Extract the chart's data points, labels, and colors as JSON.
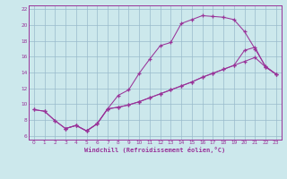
{
  "xlabel": "Windchill (Refroidissement éolien,°C)",
  "bg_color": "#cce8ec",
  "line_color": "#993399",
  "grid_color": "#99bbcc",
  "spine_color": "#993399",
  "xlim": [
    -0.5,
    23.5
  ],
  "ylim": [
    5.5,
    22.5
  ],
  "xticks": [
    0,
    1,
    2,
    3,
    4,
    5,
    6,
    7,
    8,
    9,
    10,
    11,
    12,
    13,
    14,
    15,
    16,
    17,
    18,
    19,
    20,
    21,
    22,
    23
  ],
  "yticks": [
    6,
    8,
    10,
    12,
    14,
    16,
    18,
    20,
    22
  ],
  "curve1_x": [
    0,
    1,
    2,
    3,
    4,
    5,
    6,
    7,
    8,
    9,
    10,
    11,
    12,
    13,
    14,
    15,
    16,
    17,
    18,
    19,
    20,
    21,
    22,
    23
  ],
  "curve1_y": [
    9.3,
    9.1,
    7.9,
    6.9,
    7.3,
    6.6,
    7.5,
    9.4,
    11.1,
    11.8,
    13.9,
    15.7,
    17.4,
    17.8,
    20.2,
    20.7,
    21.2,
    21.1,
    21.0,
    20.7,
    19.2,
    17.0,
    14.8,
    13.8
  ],
  "curve2_x": [
    0,
    1,
    2,
    3,
    4,
    5,
    6,
    7,
    8,
    9,
    10,
    11,
    12,
    13,
    14,
    15,
    16,
    17,
    18,
    19,
    20,
    21,
    22,
    23
  ],
  "curve2_y": [
    9.3,
    9.1,
    7.9,
    6.9,
    7.3,
    6.6,
    7.5,
    9.4,
    9.6,
    9.9,
    10.3,
    10.8,
    11.3,
    11.8,
    12.3,
    12.8,
    13.4,
    13.9,
    14.4,
    14.9,
    15.4,
    15.9,
    14.7,
    13.8
  ],
  "curve3_x": [
    3,
    4,
    5,
    6,
    7,
    8,
    9,
    10,
    11,
    12,
    13,
    14,
    15,
    16,
    17,
    18,
    19,
    20,
    21,
    22,
    23
  ],
  "curve3_y": [
    6.9,
    7.3,
    6.6,
    7.5,
    9.4,
    9.6,
    9.9,
    10.3,
    10.8,
    11.3,
    11.8,
    12.3,
    12.8,
    13.4,
    13.9,
    14.4,
    14.9,
    16.8,
    17.2,
    14.7,
    13.8
  ]
}
